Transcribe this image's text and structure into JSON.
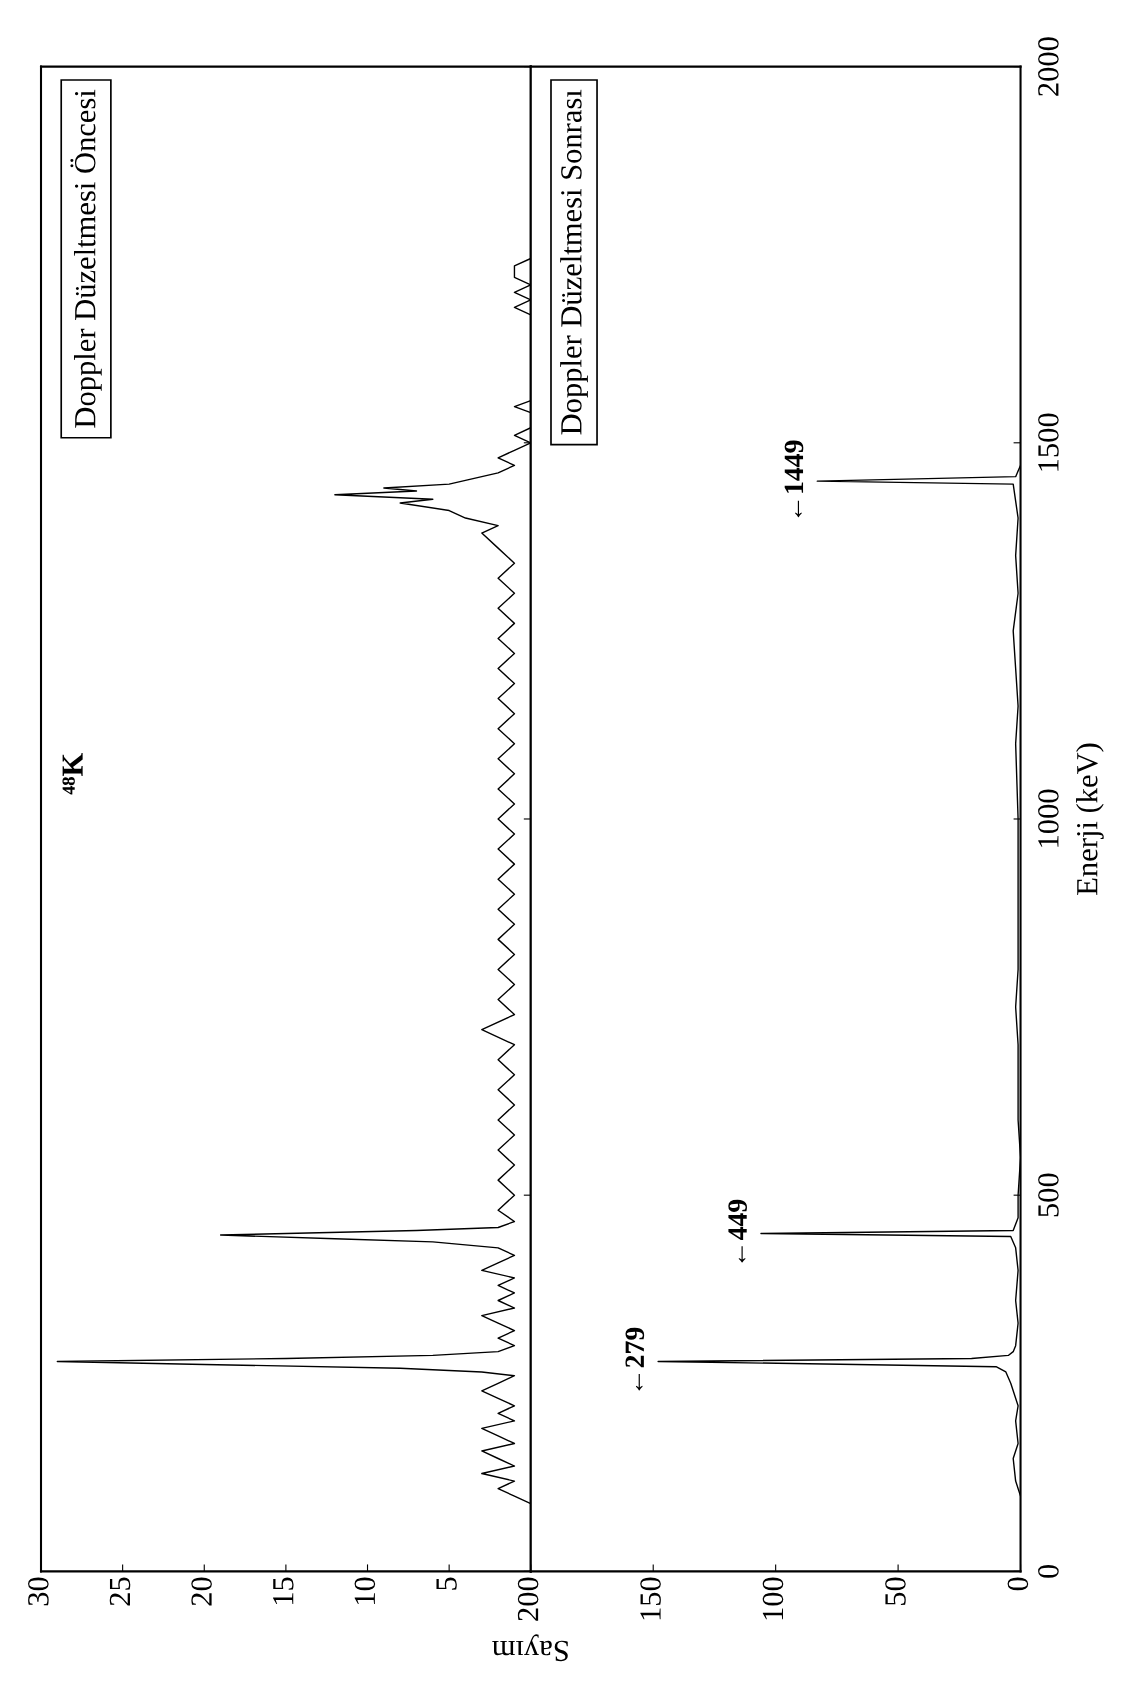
{
  "chart_data": [
    {
      "type": "line",
      "title": "Doppler Düzeltmesi Öncesi",
      "ylim": [
        0,
        2000
      ],
      "yticks": [
        0,
        500,
        1000,
        1500,
        2000
      ],
      "xlim": [
        30,
        0
      ],
      "xticks": [
        {
          "value": 0,
          "label": null
        },
        5,
        10,
        15,
        20,
        25,
        30
      ],
      "tick_labels": "x",
      "annotations": [
        "⁴⁸K"
      ],
      "series": [
        {
          "color": "#000000",
          "values": [
            90,
            100,
            110,
            120,
            130,
            140,
            150,
            160,
            170,
            180,
            190,
            200,
            210,
            220,
            230,
            240,
            250,
            260,
            265,
            270,
            275,
            279,
            283,
            287,
            292,
            300,
            310,
            320,
            330,
            340,
            350,
            360,
            370,
            380,
            390,
            400,
            410,
            420,
            430,
            438,
            442,
            447,
            450,
            453,
            457,
            465,
            480,
            500,
            520,
            540,
            560,
            580,
            600,
            620,
            640,
            660,
            680,
            700,
            720,
            740,
            760,
            780,
            800,
            820,
            840,
            860,
            880,
            900,
            920,
            940,
            960,
            980,
            1000,
            1020,
            1040,
            1060,
            1080,
            1100,
            1120,
            1140,
            1160,
            1180,
            1200,
            1220,
            1240,
            1260,
            1280,
            1300,
            1320,
            1340,
            1360,
            1380,
            1390,
            1400,
            1410,
            1420,
            1425,
            1431,
            1436,
            1440,
            1445,
            1450,
            1460,
            1470,
            1480,
            1490,
            1500,
            1510,
            1520,
            1540,
            1548,
            1556,
            1670,
            1680,
            1690,
            1700,
            1710,
            1720,
            1735,
            1745
          ],
          "x": [
            0,
            1,
            2,
            1,
            3,
            1,
            2,
            3,
            1,
            2,
            3,
            1,
            2,
            1,
            2,
            3,
            2,
            1,
            3,
            8,
            20,
            29,
            15,
            6,
            2,
            1,
            2,
            1,
            2,
            3,
            1,
            2,
            1,
            2,
            1,
            3,
            2,
            1,
            2,
            6,
            12,
            19,
            13,
            7,
            2,
            1,
            2,
            1,
            2,
            1,
            2,
            1,
            2,
            1,
            2,
            1,
            2,
            1,
            3,
            1,
            2,
            1,
            2,
            1,
            2,
            1,
            2,
            1,
            2,
            1,
            2,
            1,
            2,
            1,
            2,
            1,
            2,
            1,
            2,
            1,
            2,
            1,
            2,
            1,
            2,
            1,
            2,
            1,
            2,
            1,
            2,
            3,
            2,
            4,
            5,
            8,
            6,
            12,
            7,
            9,
            5,
            4,
            2,
            1,
            2,
            1,
            0,
            1,
            0,
            0,
            1,
            0,
            0,
            1,
            0,
            1,
            0,
            1,
            1,
            0
          ]
        }
      ]
    },
    {
      "type": "line",
      "title": "Doppler Düzeltmesi Sonrası",
      "ylabel": "Enerji (keV)",
      "xlabel": "Sayım",
      "ylim": [
        0,
        2000
      ],
      "yticks": [
        0,
        500,
        1000,
        1500,
        2000
      ],
      "xlim": [
        200,
        0
      ],
      "xticks": [
        0,
        50,
        100,
        150,
        200
      ],
      "annotations": [
        {
          "text": "←279",
          "x": 148,
          "y": 279
        },
        {
          "text": "←449",
          "x": 106,
          "y": 449
        },
        {
          "text": "←1449",
          "x": 83,
          "y": 1449
        }
      ],
      "series": [
        {
          "color": "#000000",
          "values": [
            100,
            120,
            150,
            170,
            200,
            220,
            250,
            265,
            272,
            279,
            283,
            287,
            292,
            300,
            330,
            360,
            400,
            430,
            445,
            449,
            453,
            470,
            500,
            550,
            600,
            700,
            750,
            800,
            900,
            1000,
            1100,
            1150,
            1200,
            1250,
            1300,
            1350,
            1400,
            1445,
            1449,
            1455,
            1470
          ],
          "x": [
            0,
            2,
            3,
            1,
            2,
            1,
            4,
            6,
            10,
            148,
            20,
            5,
            3,
            2,
            1,
            2,
            1,
            2,
            4,
            106,
            3,
            1,
            1,
            0,
            1,
            1,
            2,
            1,
            1,
            1,
            2,
            1,
            2,
            3,
            1,
            2,
            1,
            3,
            83,
            2,
            0
          ]
        }
      ]
    }
  ]
}
